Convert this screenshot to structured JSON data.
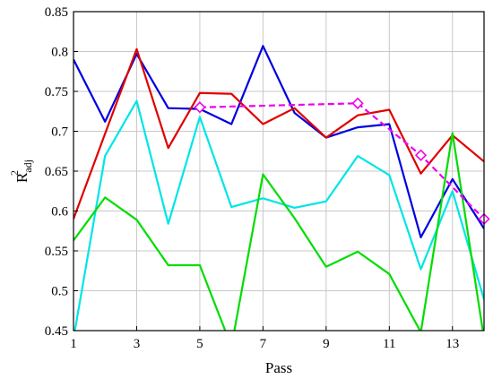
{
  "chart_data": {
    "type": "line",
    "title": "",
    "xlabel": "Pass",
    "ylabel_main": "R",
    "ylabel_sup": "2",
    "ylabel_sub": "adj",
    "xlim": [
      1,
      14
    ],
    "ylim": [
      0.45,
      0.85
    ],
    "x_ticks": [
      1,
      3,
      5,
      7,
      9,
      11,
      13
    ],
    "x_tick_labels": [
      "1",
      "3",
      "5",
      "7",
      "9",
      "11",
      "13"
    ],
    "y_ticks": [
      0.45,
      0.5,
      0.55,
      0.6,
      0.65,
      0.7,
      0.75,
      0.8,
      0.85
    ],
    "y_tick_labels": [
      "0.45",
      "0.5",
      "0.55",
      "0.6",
      "0.65",
      "0.7",
      "0.75",
      "0.8",
      "0.85"
    ],
    "grid": true,
    "series": [
      {
        "color": "#0000e0",
        "dashed": false,
        "marker": "none",
        "x": [
          1,
          2,
          3,
          4,
          5,
          6,
          7,
          8,
          9,
          10,
          11,
          12,
          13,
          14
        ],
        "y": [
          0.79,
          0.712,
          0.797,
          0.729,
          0.728,
          0.709,
          0.807,
          0.723,
          0.692,
          0.705,
          0.709,
          0.567,
          0.64,
          0.578
        ]
      },
      {
        "color": "#e00000",
        "dashed": false,
        "marker": "none",
        "x": [
          1,
          2,
          3,
          4,
          5,
          6,
          7,
          8,
          9,
          10,
          11,
          12,
          13,
          14
        ],
        "y": [
          0.59,
          0.697,
          0.803,
          0.679,
          0.748,
          0.747,
          0.709,
          0.729,
          0.692,
          0.72,
          0.727,
          0.647,
          0.695,
          0.662
        ]
      },
      {
        "color": "#00e5e5",
        "dashed": false,
        "marker": "none",
        "x": [
          1,
          2,
          3,
          4,
          5,
          6,
          7,
          8,
          9,
          10,
          11,
          12,
          13,
          14
        ],
        "y": [
          0.44,
          0.669,
          0.738,
          0.584,
          0.718,
          0.605,
          0.616,
          0.604,
          0.612,
          0.669,
          0.645,
          0.527,
          0.625,
          0.489
        ]
      },
      {
        "color": "#00dd00",
        "dashed": false,
        "marker": "none",
        "x": [
          1,
          2,
          3,
          4,
          5,
          6,
          7,
          8,
          9,
          10,
          11,
          12,
          13,
          14
        ],
        "y": [
          0.563,
          0.617,
          0.589,
          0.532,
          0.532,
          0.43,
          0.646,
          0.591,
          0.53,
          0.549,
          0.521,
          0.448,
          0.698,
          0.44
        ]
      },
      {
        "color": "#ee00ee",
        "dashed": true,
        "marker": "diamond",
        "x": [
          5,
          10,
          12,
          14
        ],
        "y": [
          0.73,
          0.735,
          0.67,
          0.59
        ]
      }
    ]
  }
}
